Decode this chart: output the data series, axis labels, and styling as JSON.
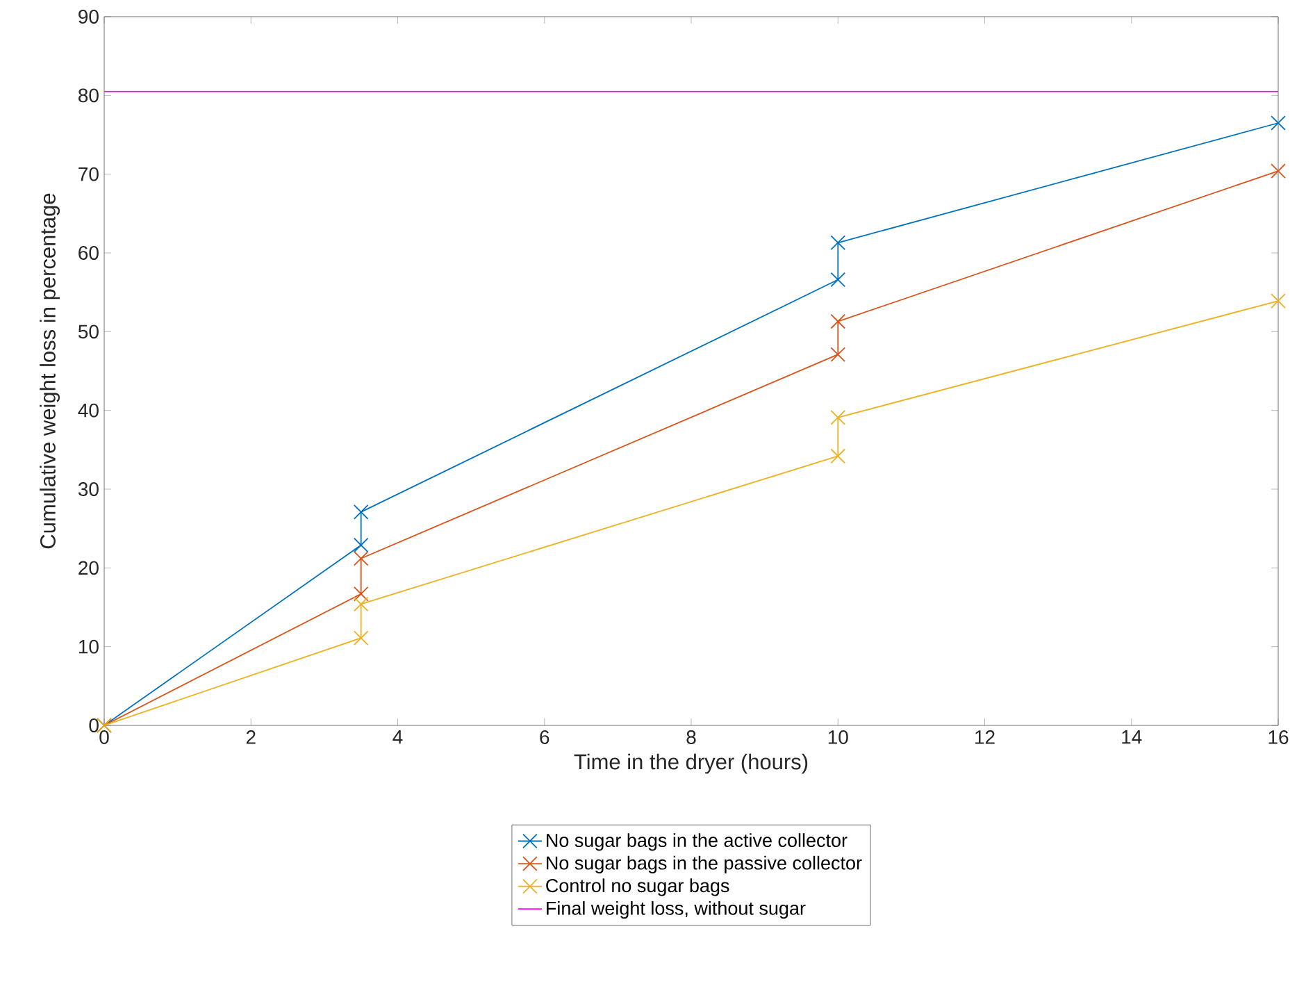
{
  "chart_data": {
    "type": "line",
    "xlabel": "Time in the dryer (hours)",
    "ylabel": "Cumulative weight loss in percentage",
    "xlim": [
      0,
      16
    ],
    "ylim": [
      0,
      90
    ],
    "xticks": [
      0,
      2,
      4,
      6,
      8,
      10,
      12,
      14,
      16
    ],
    "yticks": [
      0,
      10,
      20,
      30,
      40,
      50,
      60,
      70,
      80,
      90
    ],
    "marker": "cross",
    "legend": "bottom",
    "grid": false,
    "series": [
      {
        "name": "No sugar bags in the active collector",
        "color": "#0072bd",
        "x": [
          0,
          3.5,
          3.5,
          10,
          10,
          16
        ],
        "values": [
          0,
          22.9,
          27.1,
          56.6,
          61.3,
          76.5
        ]
      },
      {
        "name": "No sugar bags in the passive collector",
        "color": "#d95319",
        "x": [
          0,
          3.5,
          3.5,
          10,
          10,
          16
        ],
        "values": [
          0,
          16.7,
          21.2,
          47.1,
          51.3,
          70.4
        ]
      },
      {
        "name": "Control no sugar bags",
        "color": "#edb120",
        "x": [
          0,
          3.5,
          3.5,
          10,
          10,
          16
        ],
        "values": [
          0,
          11.1,
          15.4,
          34.2,
          39.1,
          53.9
        ]
      },
      {
        "name": "Final weight loss, without sugar",
        "color": "#ff00ff",
        "marker": "none",
        "x": [
          0,
          16
        ],
        "values": [
          80.5,
          80.5
        ]
      }
    ]
  }
}
